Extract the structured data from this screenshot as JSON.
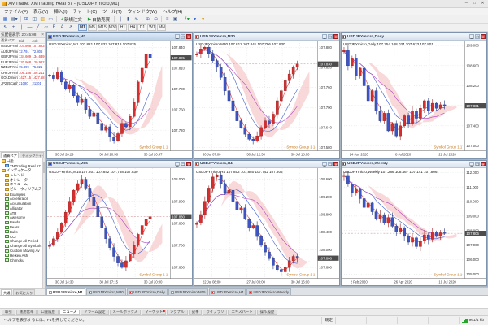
{
  "window": {
    "title": "XMTrade: XMTrading Real 67 - [USDJPYmicro,M1]"
  },
  "menu": {
    "items": [
      "ファイル(F)",
      "表示(V)",
      "挿入(I)",
      "チャート(C)",
      "ツール(T)",
      "ウィンドウ(W)",
      "ヘルプ(H)"
    ]
  },
  "toolbar_main": [
    {
      "name": "new-chart-button",
      "glyph": "▦",
      "cls": "gl-blue"
    },
    {
      "name": "profiles-button",
      "glyph": "▤▾",
      "cls": ""
    },
    {
      "name": "market-watch-toggle",
      "glyph": "⊞",
      "cls": "gl-blue"
    },
    {
      "name": "data-window-toggle",
      "glyph": "◫",
      "cls": ""
    },
    {
      "name": "navigator-toggle",
      "glyph": "▥",
      "cls": "gl-yellow"
    },
    {
      "name": "terminal-toggle",
      "glyph": "▭",
      "cls": ""
    },
    {
      "name": "new-order-button",
      "glyph": "+",
      "cls": "gl-green",
      "label": "新規注文"
    },
    {
      "name": "autotrade-button",
      "glyph": "▶",
      "cls": "gl-green",
      "label": "自動売買"
    },
    {
      "name": "bar-chart-button",
      "glyph": "∥",
      "cls": ""
    },
    {
      "name": "candlestick-button",
      "glyph": "▮",
      "cls": ""
    },
    {
      "name": "line-chart-button",
      "glyph": "∿",
      "cls": ""
    },
    {
      "name": "zoom-in-button",
      "glyph": "⊕",
      "cls": "gl-blue"
    },
    {
      "name": "zoom-out-button",
      "glyph": "⊖",
      "cls": "gl-blue"
    },
    {
      "name": "auto-scroll-button",
      "glyph": "≡",
      "cls": ""
    },
    {
      "name": "chart-shift-button",
      "glyph": "▣",
      "cls": ""
    },
    {
      "name": "indicators-button",
      "glyph": "ƒ▾",
      "cls": "gl-green"
    },
    {
      "name": "periods-button",
      "glyph": "▾",
      "cls": "gl-blue"
    },
    {
      "name": "templates-button",
      "glyph": "▾",
      "cls": "gl-yellow"
    }
  ],
  "toolbar_draw": [
    {
      "name": "cursor-tool",
      "glyph": "↖"
    },
    {
      "name": "crosshair-tool",
      "glyph": "+"
    },
    {
      "name": "vertical-line-tool",
      "glyph": "|"
    },
    {
      "name": "horizontal-line-tool",
      "glyph": "—"
    },
    {
      "name": "trendline-tool",
      "glyph": "╱"
    },
    {
      "name": "channel-tool",
      "glyph": "▱"
    },
    {
      "name": "fibonacci-tool",
      "glyph": "F"
    },
    {
      "name": "text-tool",
      "glyph": "A"
    },
    {
      "name": "arrow-tool",
      "glyph": "↗"
    }
  ],
  "timeframes": {
    "items": [
      "M1",
      "M5",
      "M15",
      "M30",
      "H1",
      "H4",
      "D1",
      "W1",
      "MN"
    ],
    "active": "M1"
  },
  "market_watch": {
    "title": "気配値表示: 20:45:08",
    "columns": [
      "通貨ペア",
      "Bid",
      "Ask"
    ],
    "rows": [
      {
        "symbol": "USDJPYmicro",
        "bid": "107.808",
        "ask": "107.823",
        "dir": "up"
      },
      {
        "symbol": "AUDJPYmicro",
        "bid": "72.791",
        "ask": "72.806",
        "dir": "down"
      },
      {
        "symbol": "GBPJPYmicro",
        "bid": "134.609",
        "ask": "134.639",
        "dir": "up"
      },
      {
        "symbol": "EURJPYmicro",
        "bid": "120.968",
        "ask": "120.982",
        "dir": "up"
      },
      {
        "symbol": "NZDJPYmicro",
        "bid": "75.899",
        "ask": "75.921",
        "dir": "down"
      },
      {
        "symbol": "CHFJPYmicro",
        "bid": "106.186",
        "ask": "106.211",
        "dir": "up"
      },
      {
        "symbol": "GOLDmicro",
        "bid": "1427.15",
        "ask": "1427.58",
        "dir": "up"
      },
      {
        "symbol": "JP225Cash",
        "bid": "21080",
        "ask": "21101",
        "dir": "down"
      }
    ],
    "tabs": [
      "通貨ペア",
      "ティックチャート"
    ],
    "active_tab": "通貨ペア"
  },
  "navigator": {
    "items": [
      {
        "label": "口座",
        "icon": "folder",
        "depth": 0
      },
      {
        "label": "XMTrading Real 67",
        "icon": "account",
        "depth": 1
      },
      {
        "label": "インディケータ",
        "icon": "folder",
        "depth": 0
      },
      {
        "label": "トレンド",
        "icon": "folder",
        "depth": 1
      },
      {
        "label": "オシレーター",
        "icon": "folder",
        "depth": 1
      },
      {
        "label": "ボリューム",
        "icon": "folder",
        "depth": 1
      },
      {
        "label": "ビル・ウィリアムス",
        "icon": "folder",
        "depth": 1
      },
      {
        "label": "Examples",
        "icon": "folder",
        "depth": 1
      },
      {
        "label": "Accelerator",
        "icon": "indicator",
        "depth": 1
      },
      {
        "label": "Accumulation",
        "icon": "indicator",
        "depth": 1
      },
      {
        "label": "Alligator",
        "icon": "indicator",
        "depth": 1
      },
      {
        "label": "ATR",
        "icon": "indicator",
        "depth": 1
      },
      {
        "label": "Awesome",
        "icon": "indicator",
        "depth": 1
      },
      {
        "label": "Bands",
        "icon": "indicator",
        "depth": 1
      },
      {
        "label": "Bears",
        "icon": "indicator",
        "depth": 1
      },
      {
        "label": "Bulls",
        "icon": "indicator",
        "depth": 1
      },
      {
        "label": "CCI",
        "icon": "indicator",
        "depth": 1
      },
      {
        "label": "Change All Period",
        "icon": "indicator",
        "depth": 1
      },
      {
        "label": "Change All Symbols",
        "icon": "indicator",
        "depth": 1
      },
      {
        "label": "Custom Moving Av",
        "icon": "indicator",
        "depth": 1
      },
      {
        "label": "Heiken Ashi",
        "icon": "indicator",
        "depth": 1
      },
      {
        "label": "Ichimoku",
        "icon": "indicator",
        "depth": 1
      }
    ],
    "tabs": [
      "共通",
      "お気に入り"
    ],
    "active_tab": "共通"
  },
  "chart_data": [
    {
      "type": "candlestick",
      "title": "USDJPYmicro,M1",
      "info": "USDJPYmicro,M1 107.821 107.833 107.818 107.825",
      "price": "107.825",
      "range": [
        107.69,
        107.85
      ],
      "yticks": [
        107.84,
        107.81,
        107.78,
        107.75,
        107.72
      ],
      "xlabels": [
        "30 Jul 20:29",
        "30 Jul 20:38",
        "30 Jul 20:47"
      ],
      "overlay": "Symbol Group 1 1",
      "closes": [
        107.8,
        107.795,
        107.805,
        107.79,
        107.78,
        107.785,
        107.77,
        107.76,
        107.765,
        107.75,
        107.74,
        107.745,
        107.73,
        107.72,
        107.725,
        107.71,
        107.705,
        107.715,
        107.73,
        107.725,
        107.74,
        107.76,
        107.79,
        107.81,
        107.83,
        107.825
      ]
    },
    {
      "type": "candlestick",
      "title": "USDJPYmicro,M30",
      "info": "USDJPYmicro,M30 107.812 107.841 107.796 107.830",
      "price": "107.830",
      "range": [
        107.57,
        107.9
      ],
      "yticks": [
        107.88,
        107.82,
        107.76,
        107.7,
        107.64,
        107.58
      ],
      "xlabels": [
        "30 Jul 07:00",
        "30 Jul 12:30",
        "30 Jul 18:00"
      ],
      "overlay": "Symbol Group 1 1",
      "closes": [
        107.86,
        107.875,
        107.88,
        107.86,
        107.84,
        107.82,
        107.79,
        107.75,
        107.72,
        107.69,
        107.66,
        107.64,
        107.62,
        107.605,
        107.6,
        107.615,
        107.64,
        107.66,
        107.65,
        107.68,
        107.72,
        107.75,
        107.78,
        107.8,
        107.82,
        107.83
      ]
    },
    {
      "type": "candlestick",
      "title": "USDJPYmicro,Daily",
      "info": "USDJPYmicro,Daily 107.754 108.034 107.623 107.801",
      "price": "107.801",
      "range": [
        106.9,
        109.1
      ],
      "yticks": [
        109.0,
        108.6,
        108.2,
        107.8,
        107.4,
        107.0
      ],
      "xlabels": [
        "24 Jun 2020",
        "8 Jul 2020",
        "22 Jul 2020"
      ],
      "overlay": "Symbol Group 1 1",
      "closes": [
        108.9,
        108.6,
        108.75,
        108.4,
        108.55,
        108.2,
        107.9,
        108.1,
        107.7,
        107.5,
        107.65,
        107.3,
        107.45,
        107.2,
        107.4,
        107.6,
        107.45,
        107.7,
        107.55,
        107.75,
        107.9,
        107.7,
        107.85,
        107.75,
        107.82,
        107.8
      ]
    },
    {
      "type": "candlestick",
      "title": "USDJPYmicro,M15",
      "info": "USDJPYmicro,M15 107.801 107.842 107.788 107.830",
      "price": "107.830",
      "range": [
        107.55,
        108.05
      ],
      "yticks": [
        108.0,
        107.9,
        107.8,
        107.7,
        107.6
      ],
      "xlabels": [
        "30 Jul 14:30",
        "30 Jul 17:15",
        "30 Jul 20:00"
      ],
      "overlay": "Symbol Group 1 1",
      "closes": [
        107.7,
        107.73,
        107.76,
        107.8,
        107.85,
        107.9,
        107.95,
        107.98,
        108.0,
        107.96,
        107.92,
        107.88,
        107.83,
        107.78,
        107.73,
        107.69,
        107.65,
        107.62,
        107.6,
        107.63,
        107.66,
        107.7,
        107.75,
        107.79,
        107.82,
        107.83
      ]
    },
    {
      "type": "candlestick",
      "title": "USDJPYmicro,H4",
      "info": "USDJPYmicro,H4 107.852 107.880 107.742 107.806",
      "price": "107.806",
      "range": [
        107.35,
        109.85
      ],
      "yticks": [
        109.6,
        109.2,
        108.8,
        108.4,
        108.0,
        107.6
      ],
      "xlabels": [
        "22 Jul 08:00",
        "27 Jul 00:00",
        "30 Jul 16:00"
      ],
      "overlay": "Symbol Group 1 1",
      "closes": [
        108.6,
        108.8,
        109.1,
        109.4,
        109.65,
        109.7,
        109.5,
        109.3,
        109.35,
        109.1,
        108.9,
        108.95,
        108.7,
        108.5,
        108.55,
        108.3,
        108.1,
        107.95,
        107.8,
        107.65,
        107.55,
        107.5,
        107.6,
        107.75,
        107.85,
        107.81
      ]
    },
    {
      "type": "candlestick",
      "title": "USDJPYmicro,Weekly",
      "info": "USDJPYmicro,Weekly 107.286 108.467 107.141 107.806",
      "price": "107.806",
      "range": [
        104.7,
        112.3
      ],
      "yticks": [
        112.0,
        111.0,
        110.0,
        109.0,
        108.0,
        107.0,
        106.0,
        105.0
      ],
      "xlabels": [
        "2 Feb 2020",
        "26 Apr 2020",
        "19 Jul 2020"
      ],
      "overlay": "Symbol Group 1 1",
      "closes": [
        111.8,
        111.2,
        110.6,
        110.9,
        110.2,
        109.6,
        109.9,
        109.3,
        108.8,
        109.1,
        108.5,
        108.9,
        108.3,
        107.9,
        108.2,
        107.6,
        107.2,
        107.5,
        106.9,
        107.3,
        107.7,
        107.4,
        107.9,
        107.6,
        107.85,
        107.81
      ]
    }
  ],
  "mdi_tabs": {
    "active": "USDJPYmicro,M1"
  },
  "terminal": {
    "tabs": [
      "取引",
      "運用比率",
      "口座履歴",
      "ニュース",
      "アラーム設定",
      "メールボックス",
      "マーケット",
      "シグナル",
      "記事",
      "ライブラリ",
      "エキスパート",
      "操作履歴"
    ],
    "active": "ニュース",
    "badge_tab": "マーケット"
  },
  "statusbar": {
    "help": "ヘルプを表示するには、F1を押してください。",
    "profile": "既定",
    "connection": "961/1 kb"
  },
  "colors": {
    "candle_up": "#d42e2e",
    "candle_up_stroke": "#961d1d",
    "candle_down": "#3d55c4",
    "candle_down_stroke": "#25357e",
    "ma_fast": "#e04040",
    "ma_mid": "#3a5ad0",
    "ma_slow": "#aa46bb",
    "cloud": "#f2a8ac",
    "grid": "#d9d9d9",
    "axis_text": "#333333",
    "price_tag": "#4c4c4c",
    "overlay_text": "#c87818",
    "price_line": "#c06060"
  }
}
